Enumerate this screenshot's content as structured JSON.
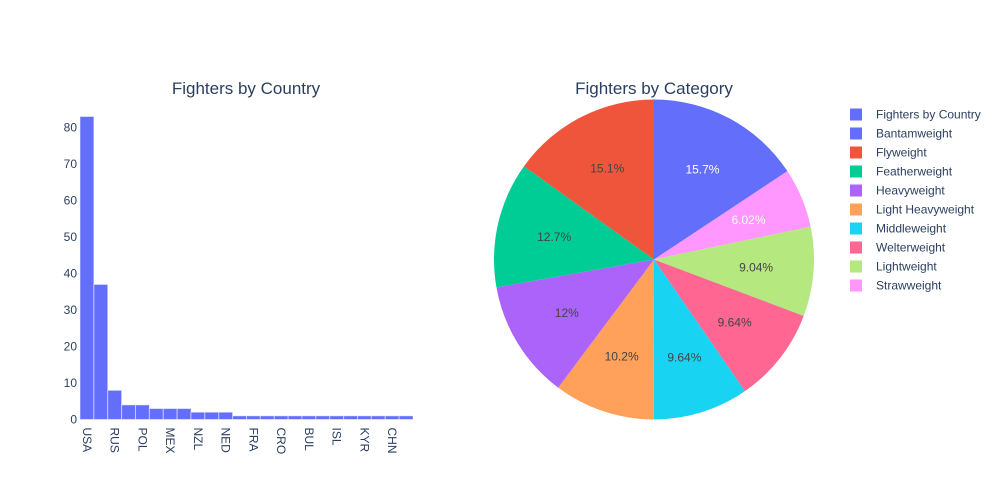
{
  "chart_data": [
    {
      "type": "bar",
      "title": "Fighters by Country",
      "xlabel": "",
      "ylabel": "",
      "categories": [
        "USA",
        "",
        "RUS",
        "",
        "POL",
        "",
        "MEX",
        "",
        "NZL",
        "",
        "NED",
        "",
        "FRA",
        "",
        "CRO",
        "",
        "BUL",
        "",
        "ISL",
        "",
        "KYR",
        "",
        "CHN",
        ""
      ],
      "tick_labels": [
        "USA",
        "RUS",
        "POL",
        "MEX",
        "NZL",
        "NED",
        "FRA",
        "CRO",
        "BUL",
        "ISL",
        "KYR",
        "CHN"
      ],
      "values": [
        83,
        37,
        8,
        4,
        4,
        3,
        3,
        3,
        2,
        2,
        2,
        1,
        1,
        1,
        1,
        1,
        1,
        1,
        1,
        1,
        1,
        1,
        1,
        1
      ],
      "ylim": [
        0,
        87
      ],
      "yticks": [
        0,
        10,
        20,
        30,
        40,
        50,
        60,
        70,
        80
      ],
      "bar_color": "#636efa",
      "grid": false
    },
    {
      "type": "pie",
      "title": "Fighters by Category",
      "slices": [
        {
          "label": "Bantamweight",
          "value": 15.7,
          "text": "15.7%",
          "color": "#636efa",
          "text_color": "#ffffff"
        },
        {
          "label": "Strawweight",
          "value": 6.02,
          "text": "6.02%",
          "color": "#ff97ff",
          "text_color": "#ffffff"
        },
        {
          "label": "Lightweight",
          "value": 9.04,
          "text": "9.04%",
          "color": "#b6e880",
          "text_color": "#444444"
        },
        {
          "label": "Welterweight",
          "value": 9.64,
          "text": "9.64%",
          "color": "#ff6692",
          "text_color": "#444444"
        },
        {
          "label": "Middleweight",
          "value": 9.64,
          "text": "9.64%",
          "color": "#19d3f3",
          "text_color": "#444444"
        },
        {
          "label": "Light Heavyweight",
          "value": 10.2,
          "text": "10.2%",
          "color": "#ffa15a",
          "text_color": "#444444"
        },
        {
          "label": "Heavyweight",
          "value": 12.0,
          "text": "12%",
          "color": "#ab63fa",
          "text_color": "#444444"
        },
        {
          "label": "Featherweight",
          "value": 12.7,
          "text": "12.7%",
          "color": "#00cc96",
          "text_color": "#444444"
        },
        {
          "label": "Flyweight",
          "value": 15.1,
          "text": "15.1%",
          "color": "#ef553b",
          "text_color": "#444444"
        }
      ],
      "legend_position": "right"
    }
  ],
  "legend": {
    "items": [
      {
        "label": "Fighters by Country",
        "color": "#636efa"
      },
      {
        "label": "Bantamweight",
        "color": "#636efa"
      },
      {
        "label": "Flyweight",
        "color": "#ef553b"
      },
      {
        "label": "Featherweight",
        "color": "#00cc96"
      },
      {
        "label": "Heavyweight",
        "color": "#ab63fa"
      },
      {
        "label": "Light Heavyweight",
        "color": "#ffa15a"
      },
      {
        "label": "Middleweight",
        "color": "#19d3f3"
      },
      {
        "label": "Welterweight",
        "color": "#ff6692"
      },
      {
        "label": "Lightweight",
        "color": "#b6e880"
      },
      {
        "label": "Strawweight",
        "color": "#ff97ff"
      }
    ]
  }
}
